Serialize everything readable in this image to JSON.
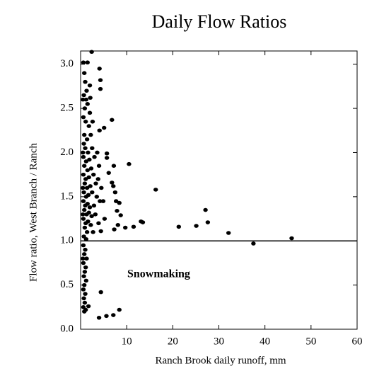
{
  "chart_data": {
    "type": "scatter",
    "title": "Daily Flow Ratios",
    "x_label": "Ranch Brook daily runoff, mm",
    "y_label": "Flow ratio, West Branch / Ranch",
    "annotation": "Snowmaking",
    "reference_line": 1.0,
    "color": "#000000",
    "xlim": [
      0,
      60
    ],
    "ylim": [
      0,
      3.15
    ],
    "xticks": [
      10,
      20,
      30,
      40,
      50,
      60
    ],
    "yticks": [
      {
        "value": 0,
        "label": "0.0"
      },
      0.5,
      {
        "value": 1,
        "label": "1.0"
      },
      1.5,
      {
        "value": 2,
        "label": "2.0"
      },
      2.5,
      {
        "value": 3,
        "label": "3.0"
      }
    ],
    "x": [
      0.6,
      0.8,
      1.0,
      0.7,
      1.2,
      0.9,
      1.5,
      0.6,
      1.1,
      1.8,
      0.8,
      1.4,
      2.2,
      0.7,
      1.0,
      1.6,
      2.5,
      0.6,
      1.2,
      1.9,
      3.0,
      0.8,
      1.5,
      2.3,
      0.6,
      1.1,
      1.8,
      2.8,
      0.9,
      1.4,
      2.1,
      3.3,
      0.7,
      1.2,
      1.7,
      2.5,
      3.5,
      0.6,
      1.0,
      1.5,
      2.0,
      2.9,
      0.8,
      1.3,
      1.8,
      2.4,
      3.2,
      0.6,
      1.1,
      1.6,
      2.2,
      0.9,
      1.4,
      0.7,
      1.2,
      0.6,
      1.0,
      0.8,
      1.3,
      0.6,
      1.1,
      0.9,
      0.7,
      1.2,
      0.8,
      0.6,
      1.0,
      0.7,
      0.9,
      0.6,
      1.1,
      0.8,
      1.7,
      2.0,
      2.6,
      1.3,
      2.1,
      3.6,
      4.0,
      3.8,
      4.2,
      4.5,
      3.9,
      2.7,
      0.5,
      0.5,
      0.5,
      0.5,
      0.5,
      45.8,
      37.5,
      32.1,
      27.1,
      27.6,
      25.1,
      21.3,
      16.3,
      13.1,
      10.5,
      13.5,
      11.5,
      9.7,
      5.6,
      4.0,
      7.1,
      8.4,
      4.4,
      2.4,
      1.5,
      4.1,
      4.3,
      4.3,
      2.0,
      6.8,
      5.1,
      4.1,
      5.7,
      5.7,
      7.2,
      6.1,
      6.8,
      7.1,
      7.5,
      7.7,
      8.4,
      7.9,
      8.7,
      8.1,
      7.3,
      5.2,
      4.4,
      4.9
    ],
    "y": [
      3.02,
      2.9,
      2.8,
      2.65,
      2.6,
      2.5,
      2.55,
      2.4,
      2.35,
      2.3,
      2.2,
      2.15,
      2.2,
      2.1,
      2.05,
      2.0,
      2.05,
      1.95,
      1.9,
      1.92,
      1.95,
      1.85,
      1.8,
      1.82,
      1.75,
      1.7,
      1.72,
      1.75,
      1.65,
      1.6,
      1.62,
      1.65,
      1.55,
      1.5,
      1.52,
      1.55,
      1.5,
      1.45,
      1.4,
      1.42,
      1.38,
      1.4,
      1.35,
      1.3,
      1.32,
      1.28,
      1.3,
      1.25,
      1.2,
      1.22,
      1.18,
      1.15,
      1.1,
      1.05,
      1.02,
      0.95,
      0.9,
      0.85,
      0.8,
      0.75,
      0.7,
      0.65,
      0.6,
      0.55,
      0.5,
      0.45,
      0.4,
      0.35,
      0.3,
      0.25,
      0.22,
      0.2,
      0.26,
      2.45,
      2.35,
      2.7,
      2.62,
      2.0,
      1.85,
      1.7,
      1.45,
      1.6,
      1.2,
      1.1,
      1.6,
      2.0,
      1.3,
      0.8,
      2.6,
      1.03,
      0.97,
      1.09,
      1.35,
      1.21,
      1.17,
      1.16,
      1.58,
      1.22,
      1.87,
      1.21,
      1.16,
      1.15,
      0.15,
      0.13,
      0.16,
      0.22,
      0.42,
      3.14,
      3.02,
      2.95,
      2.82,
      2.72,
      2.76,
      2.37,
      2.28,
      2.25,
      1.99,
      1.94,
      1.85,
      1.77,
      1.66,
      1.62,
      1.55,
      1.45,
      1.43,
      1.34,
      1.29,
      1.18,
      1.13,
      1.25,
      1.11,
      1.45
    ]
  }
}
